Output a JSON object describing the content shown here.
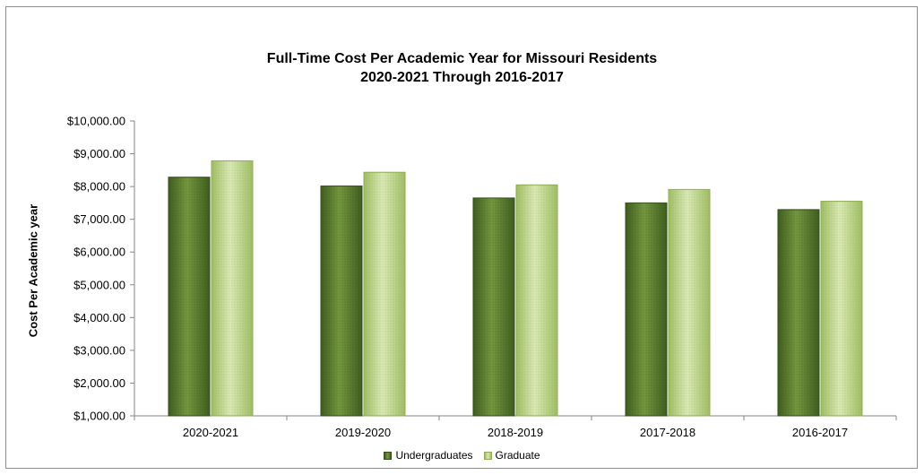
{
  "chart_data": {
    "type": "bar",
    "title_line1": "Full-Time Cost Per Academic Year for Missouri Residents",
    "title_line2": "2020-2021 Through 2016-2017",
    "xlabel": "",
    "ylabel": "Cost Per Academic year",
    "categories": [
      "2020-2021",
      "2019-2020",
      "2018-2019",
      "2017-2018",
      "2016-2017"
    ],
    "series": [
      {
        "name": "Undergraduates",
        "values": [
          8285,
          8015,
          7650,
          7500,
          7295
        ],
        "color": "#5a7a2e"
      },
      {
        "name": "Graduate",
        "values": [
          8785,
          8435,
          8050,
          7910,
          7550
        ],
        "color": "#b9d27f"
      }
    ],
    "ylim": [
      1000,
      10000
    ],
    "y_ticks": [
      1000,
      2000,
      3000,
      4000,
      5000,
      6000,
      7000,
      8000,
      9000,
      10000
    ],
    "y_tick_labels": [
      "$1,000.00",
      "$2,000.00",
      "$3,000.00",
      "$4,000.00",
      "$5,000.00",
      "$6,000.00",
      "$7,000.00",
      "$8,000.00",
      "$9,000.00",
      "$10,000.00"
    ],
    "grid": false,
    "legend_position": "bottom"
  }
}
